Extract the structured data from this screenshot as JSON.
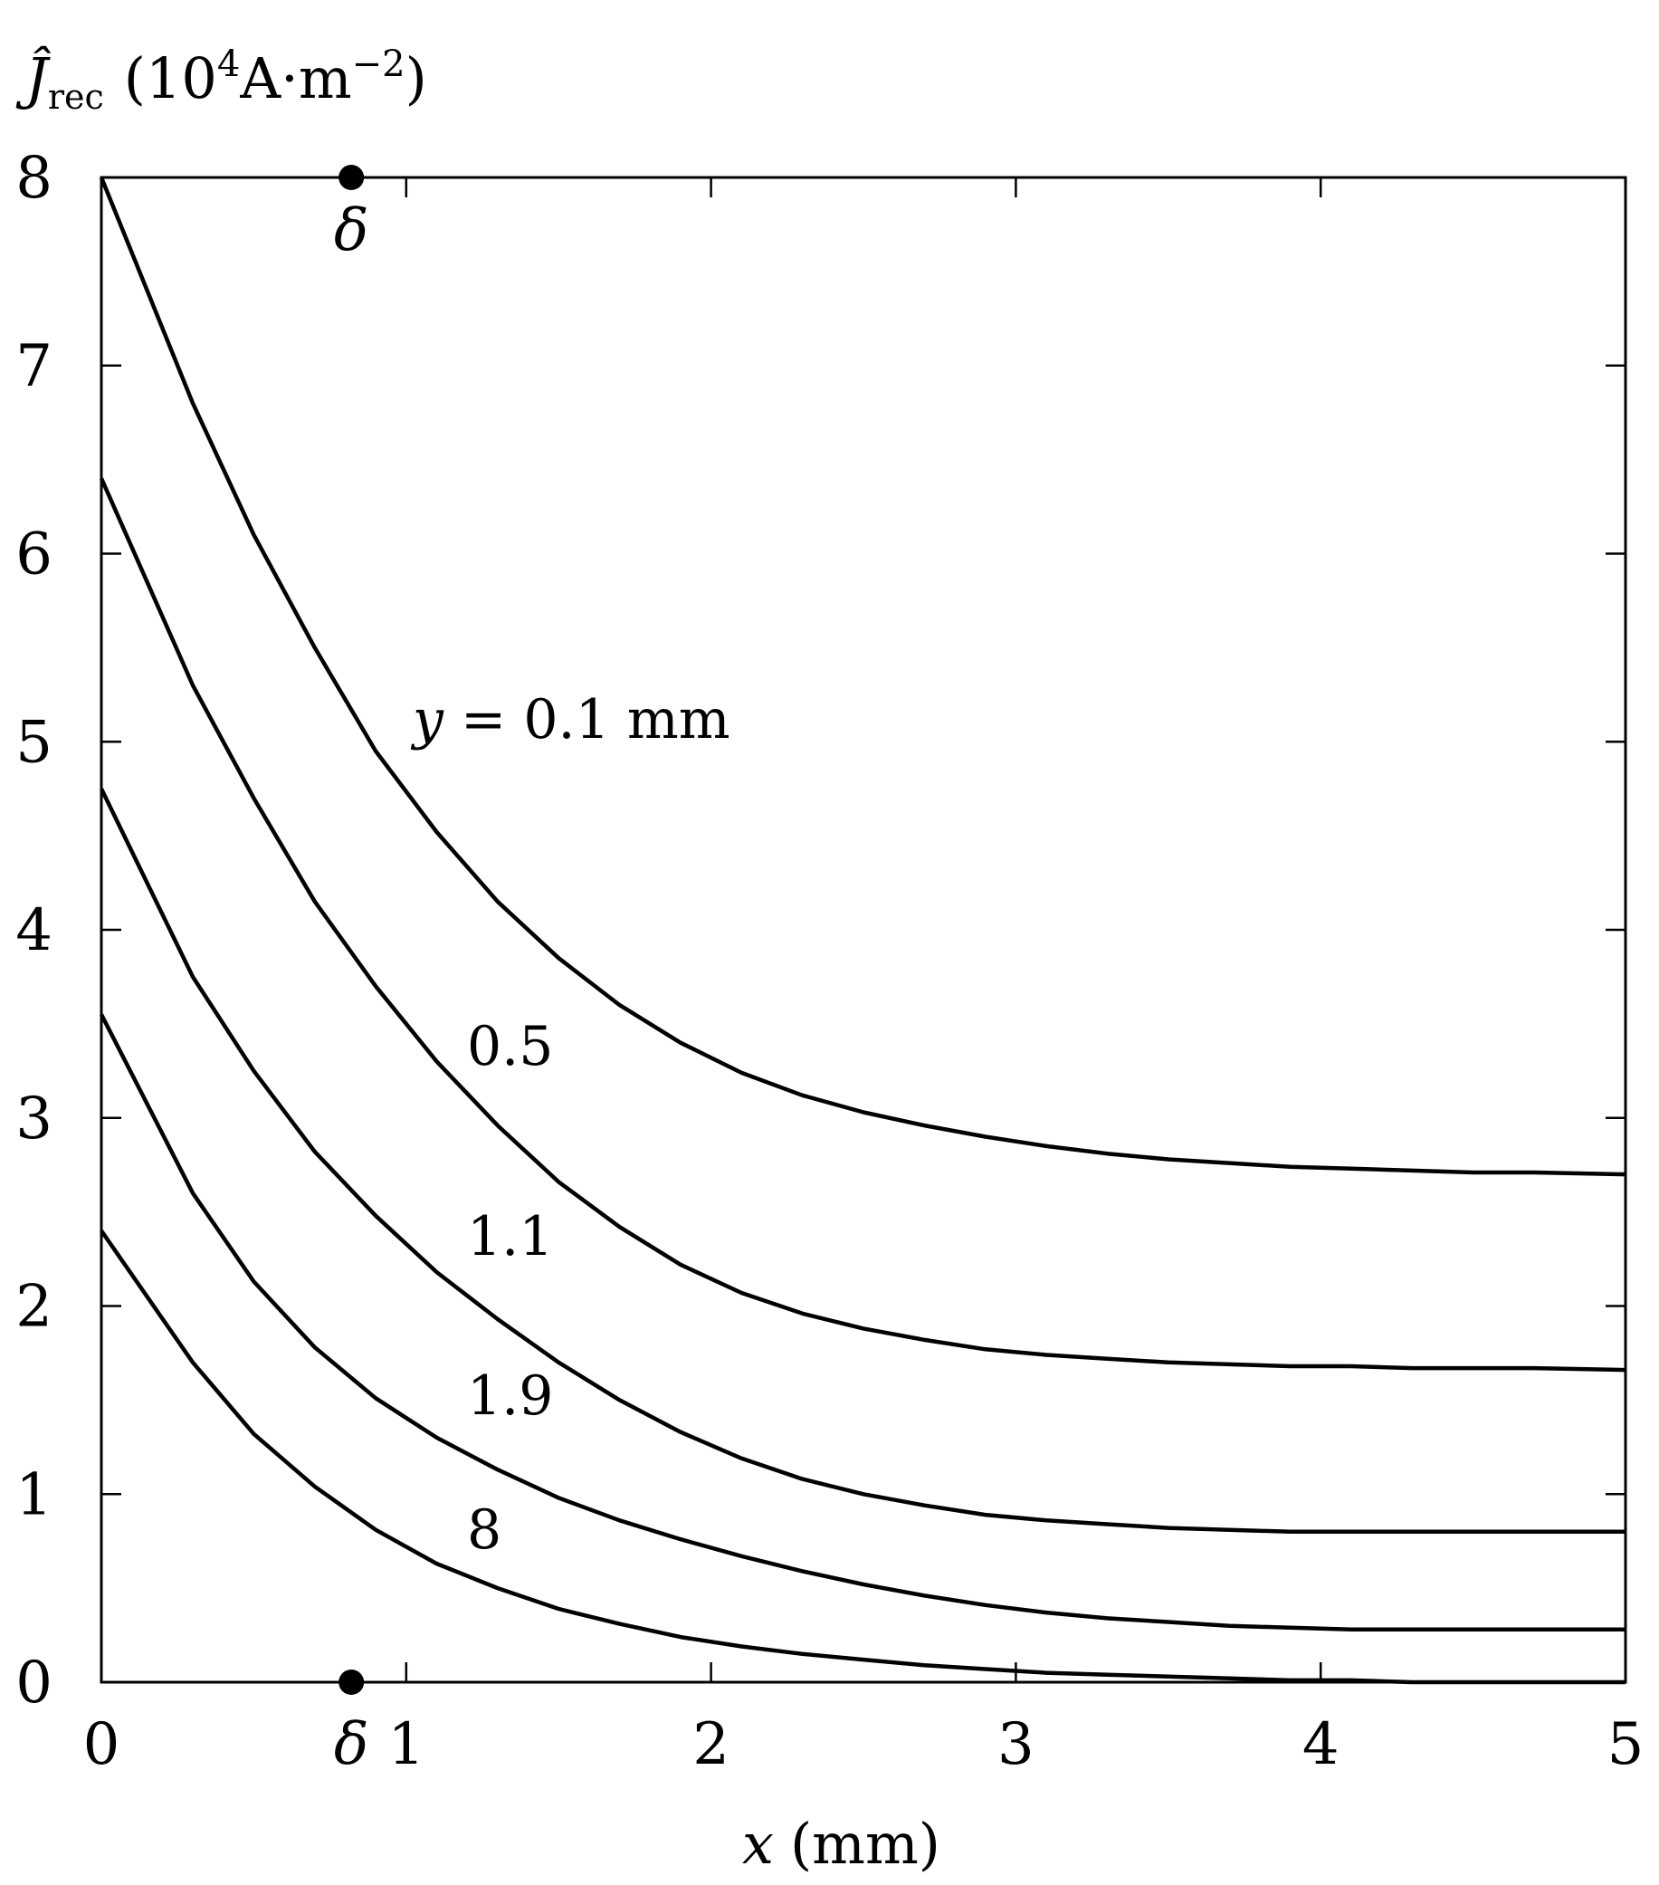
{
  "chart_data": {
    "type": "line",
    "ylabel": {
      "symbol": "Ĵ",
      "subscript": "rec",
      "unit_open": "(10",
      "unit_exp": "4",
      "unit_mid": "A·m",
      "unit_exp2": "−2",
      "unit_close": ")"
    },
    "xlabel": {
      "symbol": "x",
      "unit": "(mm)"
    },
    "xlim": [
      0,
      5
    ],
    "ylim": [
      0,
      8
    ],
    "x_ticks": [
      {
        "value": 0,
        "label": "0"
      },
      {
        "value": 1,
        "label": "1"
      },
      {
        "value": 2,
        "label": "2"
      },
      {
        "value": 3,
        "label": "3"
      },
      {
        "value": 4,
        "label": "4"
      },
      {
        "value": 5,
        "label": "5"
      }
    ],
    "y_ticks": [
      {
        "value": 0,
        "label": "0"
      },
      {
        "value": 1,
        "label": "1"
      },
      {
        "value": 2,
        "label": "2"
      },
      {
        "value": 3,
        "label": "3"
      },
      {
        "value": 4,
        "label": "4"
      },
      {
        "value": 5,
        "label": "5"
      },
      {
        "value": 6,
        "label": "6"
      },
      {
        "value": 7,
        "label": "7"
      },
      {
        "value": 8,
        "label": "8"
      }
    ],
    "grid": false,
    "delta": {
      "label": "δ",
      "x": 0.82
    },
    "x": [
      0,
      0.3,
      0.5,
      0.7,
      0.9,
      1.1,
      1.3,
      1.5,
      1.7,
      1.9,
      2.1,
      2.3,
      2.5,
      2.7,
      2.9,
      3.1,
      3.3,
      3.5,
      3.7,
      3.9,
      4.1,
      4.3,
      4.5,
      4.7,
      5.0
    ],
    "series": [
      {
        "name": "y = 0.1 mm",
        "values": [
          8.0,
          6.8,
          6.1,
          5.5,
          4.95,
          4.52,
          4.15,
          3.85,
          3.6,
          3.4,
          3.24,
          3.12,
          3.03,
          2.96,
          2.9,
          2.85,
          2.81,
          2.78,
          2.76,
          2.74,
          2.73,
          2.72,
          2.71,
          2.71,
          2.7
        ]
      },
      {
        "name": "0.5",
        "values": [
          6.4,
          5.3,
          4.7,
          4.15,
          3.7,
          3.3,
          2.96,
          2.66,
          2.42,
          2.22,
          2.07,
          1.96,
          1.88,
          1.82,
          1.77,
          1.74,
          1.72,
          1.7,
          1.69,
          1.68,
          1.68,
          1.67,
          1.67,
          1.67,
          1.66
        ]
      },
      {
        "name": "1.1",
        "values": [
          4.75,
          3.75,
          3.25,
          2.82,
          2.48,
          2.18,
          1.93,
          1.7,
          1.5,
          1.33,
          1.19,
          1.08,
          1.0,
          0.94,
          0.89,
          0.86,
          0.84,
          0.82,
          0.81,
          0.8,
          0.8,
          0.8,
          0.8,
          0.8,
          0.8
        ]
      },
      {
        "name": "1.9",
        "values": [
          3.55,
          2.6,
          2.13,
          1.78,
          1.51,
          1.3,
          1.13,
          0.98,
          0.86,
          0.76,
          0.67,
          0.59,
          0.52,
          0.46,
          0.41,
          0.37,
          0.34,
          0.32,
          0.3,
          0.29,
          0.28,
          0.28,
          0.28,
          0.28,
          0.28
        ]
      },
      {
        "name": "8",
        "values": [
          2.4,
          1.7,
          1.32,
          1.04,
          0.81,
          0.63,
          0.5,
          0.39,
          0.31,
          0.24,
          0.19,
          0.15,
          0.12,
          0.09,
          0.07,
          0.05,
          0.04,
          0.03,
          0.02,
          0.01,
          0.01,
          0.0,
          0.0,
          0.0,
          0.0
        ]
      }
    ]
  }
}
